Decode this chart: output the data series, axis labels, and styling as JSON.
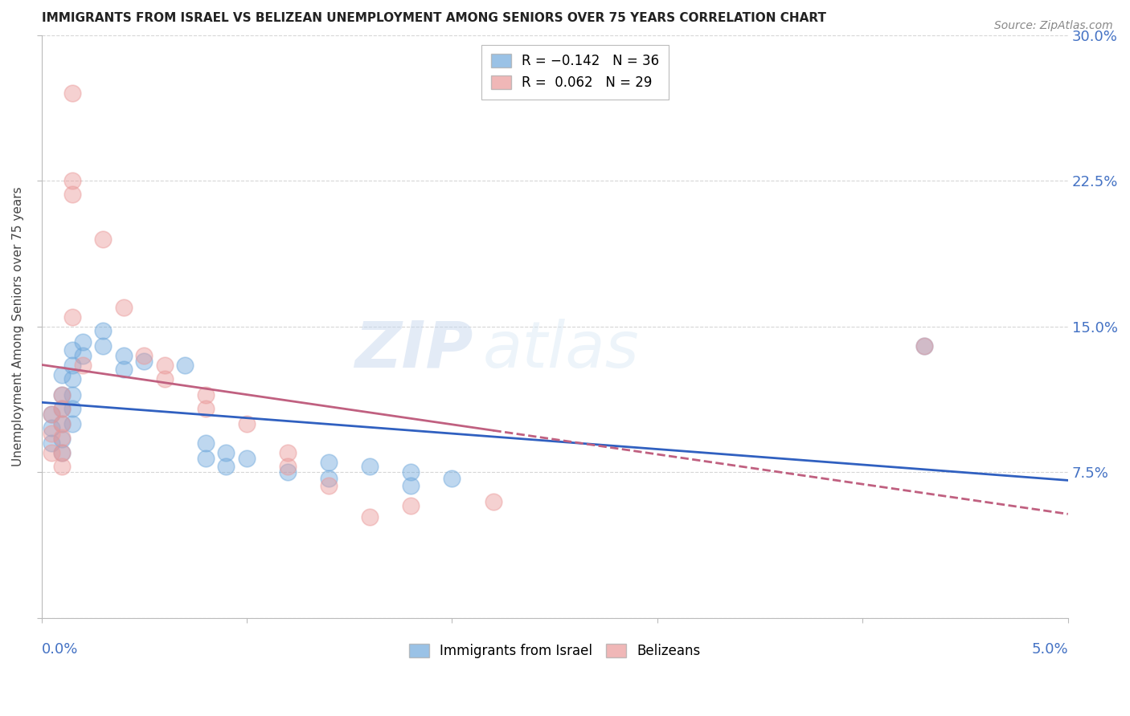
{
  "title": "IMMIGRANTS FROM ISRAEL VS BELIZEAN UNEMPLOYMENT AMONG SENIORS OVER 75 YEARS CORRELATION CHART",
  "source": "Source: ZipAtlas.com",
  "ylabel": "Unemployment Among Seniors over 75 years",
  "xlim": [
    0.0,
    0.05
  ],
  "ylim": [
    0.0,
    0.3
  ],
  "ytick_vals": [
    0.0,
    0.075,
    0.15,
    0.225,
    0.3
  ],
  "ytick_labels_right": [
    "",
    "7.5%",
    "15.0%",
    "22.5%",
    "30.0%"
  ],
  "watermark_zip": "ZIP",
  "watermark_atlas": "atlas",
  "israel_color": "#6fa8dc",
  "belizean_color": "#ea9999",
  "israel_line_color": "#3060c0",
  "belizean_line_color": "#c06080",
  "israel_points": [
    [
      0.0005,
      0.105
    ],
    [
      0.0005,
      0.098
    ],
    [
      0.0005,
      0.09
    ],
    [
      0.001,
      0.125
    ],
    [
      0.001,
      0.115
    ],
    [
      0.001,
      0.108
    ],
    [
      0.001,
      0.1
    ],
    [
      0.001,
      0.092
    ],
    [
      0.001,
      0.085
    ],
    [
      0.0015,
      0.138
    ],
    [
      0.0015,
      0.13
    ],
    [
      0.0015,
      0.123
    ],
    [
      0.0015,
      0.115
    ],
    [
      0.0015,
      0.108
    ],
    [
      0.0015,
      0.1
    ],
    [
      0.002,
      0.142
    ],
    [
      0.002,
      0.135
    ],
    [
      0.003,
      0.148
    ],
    [
      0.003,
      0.14
    ],
    [
      0.004,
      0.135
    ],
    [
      0.004,
      0.128
    ],
    [
      0.005,
      0.132
    ],
    [
      0.007,
      0.13
    ],
    [
      0.008,
      0.09
    ],
    [
      0.008,
      0.082
    ],
    [
      0.009,
      0.085
    ],
    [
      0.009,
      0.078
    ],
    [
      0.01,
      0.082
    ],
    [
      0.012,
      0.075
    ],
    [
      0.014,
      0.08
    ],
    [
      0.014,
      0.072
    ],
    [
      0.016,
      0.078
    ],
    [
      0.018,
      0.075
    ],
    [
      0.018,
      0.068
    ],
    [
      0.02,
      0.072
    ],
    [
      0.043,
      0.14
    ]
  ],
  "belizean_points": [
    [
      0.0005,
      0.105
    ],
    [
      0.0005,
      0.095
    ],
    [
      0.0005,
      0.085
    ],
    [
      0.001,
      0.115
    ],
    [
      0.001,
      0.108
    ],
    [
      0.001,
      0.1
    ],
    [
      0.001,
      0.093
    ],
    [
      0.001,
      0.085
    ],
    [
      0.001,
      0.078
    ],
    [
      0.0015,
      0.27
    ],
    [
      0.0015,
      0.225
    ],
    [
      0.0015,
      0.218
    ],
    [
      0.0015,
      0.155
    ],
    [
      0.002,
      0.13
    ],
    [
      0.003,
      0.195
    ],
    [
      0.004,
      0.16
    ],
    [
      0.005,
      0.135
    ],
    [
      0.006,
      0.13
    ],
    [
      0.006,
      0.123
    ],
    [
      0.008,
      0.115
    ],
    [
      0.008,
      0.108
    ],
    [
      0.01,
      0.1
    ],
    [
      0.012,
      0.085
    ],
    [
      0.012,
      0.078
    ],
    [
      0.014,
      0.068
    ],
    [
      0.016,
      0.052
    ],
    [
      0.018,
      0.058
    ],
    [
      0.022,
      0.06
    ],
    [
      0.043,
      0.14
    ]
  ],
  "title_fontsize": 11,
  "axis_label_color": "#4472c4",
  "grid_color": "#cccccc",
  "background_color": "#ffffff"
}
